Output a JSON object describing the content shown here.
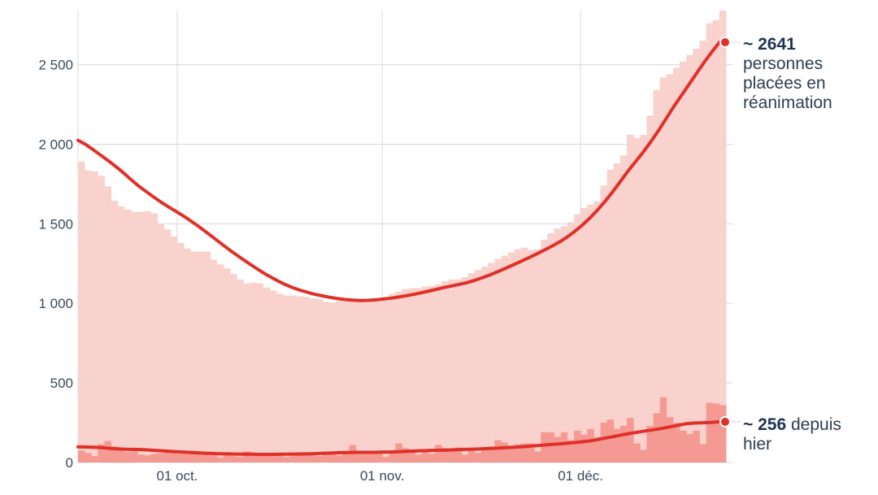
{
  "chart_data": {
    "type": "bar",
    "x_ticks": [
      "01 oct.",
      "01 nov.",
      "01 déc."
    ],
    "y_ticks": [
      "0",
      "500",
      "1 000",
      "1 500",
      "2 000",
      "2 500"
    ],
    "ylim": [
      0,
      2840
    ],
    "grid": true,
    "colors": {
      "total_bars": "#f9d1cd",
      "daily_bars": "#f49a93",
      "lines": "#e0302a",
      "grid": "#d8d8d8"
    },
    "series": [
      {
        "values": [
          1890,
          1835,
          1830,
          1800,
          1735,
          1645,
          1610,
          1590,
          1575,
          1575,
          1580,
          1565,
          1500,
          1465,
          1420,
          1380,
          1345,
          1325,
          1325,
          1325,
          1275,
          1245,
          1220,
          1185,
          1150,
          1125,
          1130,
          1125,
          1100,
          1080,
          1060,
          1050,
          1050,
          1045,
          1040,
          1030,
          1025,
          1010,
          1005,
          1015,
          1030,
          1030,
          1020,
          1010,
          1025,
          1020,
          1040,
          1060,
          1075,
          1090,
          1095,
          1095,
          1105,
          1110,
          1120,
          1140,
          1150,
          1150,
          1165,
          1190,
          1210,
          1230,
          1255,
          1280,
          1300,
          1320,
          1340,
          1350,
          1335,
          1340,
          1400,
          1440,
          1470,
          1485,
          1510,
          1560,
          1600,
          1620,
          1640,
          1740,
          1840,
          1880,
          1930,
          2060,
          2040,
          2060,
          2180,
          2340,
          2420,
          2440,
          2480,
          2520,
          2560,
          2600,
          2650,
          2760,
          2780,
          2840
        ],
        "kind": "bar"
      },
      {
        "values": [
          75,
          60,
          40,
          115,
          135,
          100,
          80,
          65,
          70,
          50,
          45,
          55,
          60,
          70,
          60,
          55,
          65,
          75,
          50,
          60,
          45,
          30,
          55,
          40,
          35,
          70,
          55,
          60,
          45,
          40,
          50,
          35,
          40,
          65,
          60,
          55,
          40,
          50,
          65,
          45,
          70,
          110,
          60,
          55,
          70,
          65,
          35,
          70,
          120,
          90,
          65,
          50,
          80,
          55,
          110,
          90,
          70,
          95,
          50,
          90,
          60,
          80,
          100,
          140,
          125,
          100,
          115,
          120,
          120,
          70,
          190,
          190,
          160,
          190,
          140,
          200,
          175,
          210,
          160,
          250,
          270,
          210,
          230,
          280,
          120,
          80,
          230,
          310,
          410,
          285,
          250,
          200,
          180,
          200,
          115,
          375,
          370,
          360
        ],
        "kind": "bar"
      },
      {
        "values": [
          2025,
          1998,
          1965,
          1930,
          1895,
          1858,
          1818,
          1775,
          1735,
          1700,
          1665,
          1632,
          1602,
          1573,
          1543,
          1510,
          1476,
          1440,
          1403,
          1366,
          1330,
          1296,
          1263,
          1231,
          1200,
          1172,
          1145,
          1121,
          1101,
          1084,
          1070,
          1057,
          1047,
          1038,
          1030,
          1024,
          1020,
          1018,
          1019,
          1022,
          1027,
          1033,
          1040,
          1048,
          1057,
          1067,
          1078,
          1089,
          1100,
          1110,
          1120,
          1131,
          1145,
          1162,
          1180,
          1200,
          1221,
          1242,
          1264,
          1286,
          1309,
          1333,
          1358,
          1385,
          1415,
          1450,
          1490,
          1535,
          1585,
          1640,
          1700,
          1765,
          1830,
          1890,
          1950,
          2015,
          2085,
          2160,
          2235,
          2305,
          2375,
          2445,
          2515,
          2580,
          2641
        ],
        "kind": "line"
      },
      {
        "values": [
          98,
          97,
          96,
          93,
          88,
          85,
          83,
          82,
          80,
          77,
          74,
          71,
          68,
          65,
          62,
          59,
          57,
          55,
          54,
          53,
          52,
          52,
          51,
          51,
          51,
          52,
          52,
          53,
          54,
          56,
          58,
          60,
          62,
          63,
          64,
          64,
          64,
          65,
          66,
          68,
          70,
          72,
          74,
          76,
          77,
          78,
          80,
          82,
          84,
          86,
          88,
          90,
          93,
          96,
          99,
          103,
          107,
          111,
          115,
          119,
          123,
          128,
          134,
          142,
          152,
          162,
          172,
          182,
          190,
          198,
          206,
          214,
          224,
          234,
          244,
          248,
          250,
          252,
          256
        ],
        "kind": "line"
      }
    ]
  },
  "annotations": {
    "total": {
      "value": "~ 2641",
      "text": " personnes placées en réanimation"
    },
    "daily": {
      "value": "~ 256",
      "text": " depuis hier"
    }
  }
}
